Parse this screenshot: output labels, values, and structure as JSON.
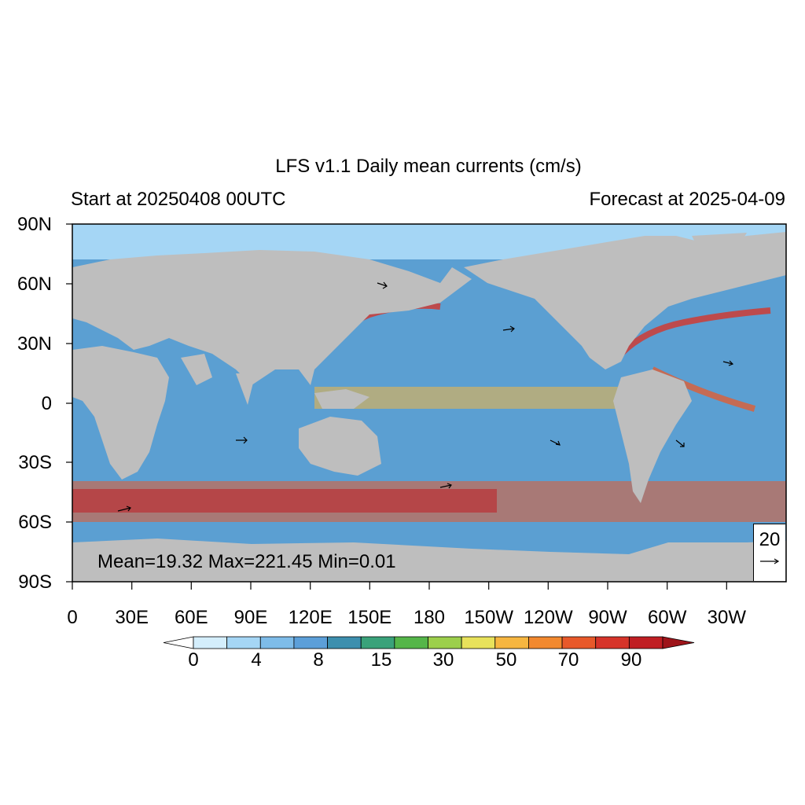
{
  "title": "LFS v1.1 Daily mean currents (cm/s)",
  "left_subtitle": "Start at 20250408 00UTC",
  "right_subtitle": "Forecast at 2025-04-09",
  "stats_text": "Mean=19.32  Max=221.45  Min=0.01",
  "reference_vector": {
    "value": "20",
    "arrow_icon": "right-arrow-icon"
  },
  "y_axis_labels": [
    "90N",
    "60N",
    "30N",
    "0",
    "30S",
    "60S",
    "90S"
  ],
  "x_axis_labels": [
    "0",
    "30E",
    "60E",
    "90E",
    "120E",
    "150E",
    "180",
    "150W",
    "120W",
    "90W",
    "60W",
    "30W"
  ],
  "colorbar": {
    "labels": [
      "0",
      "4",
      "8",
      "15",
      "30",
      "50",
      "70",
      "90"
    ],
    "colors": [
      "#ffffff",
      "#d4eefc",
      "#a5d6f5",
      "#7ebce9",
      "#5c9fd9",
      "#3d8fae",
      "#3aa27a",
      "#55b649",
      "#9ccf4b",
      "#e8e25b",
      "#f6b640",
      "#f2892f",
      "#e8592a",
      "#d6342a",
      "#c01e23",
      "#9e141a"
    ],
    "ocean_fill": "#5b9fd2",
    "land_color": "#bebebe"
  }
}
